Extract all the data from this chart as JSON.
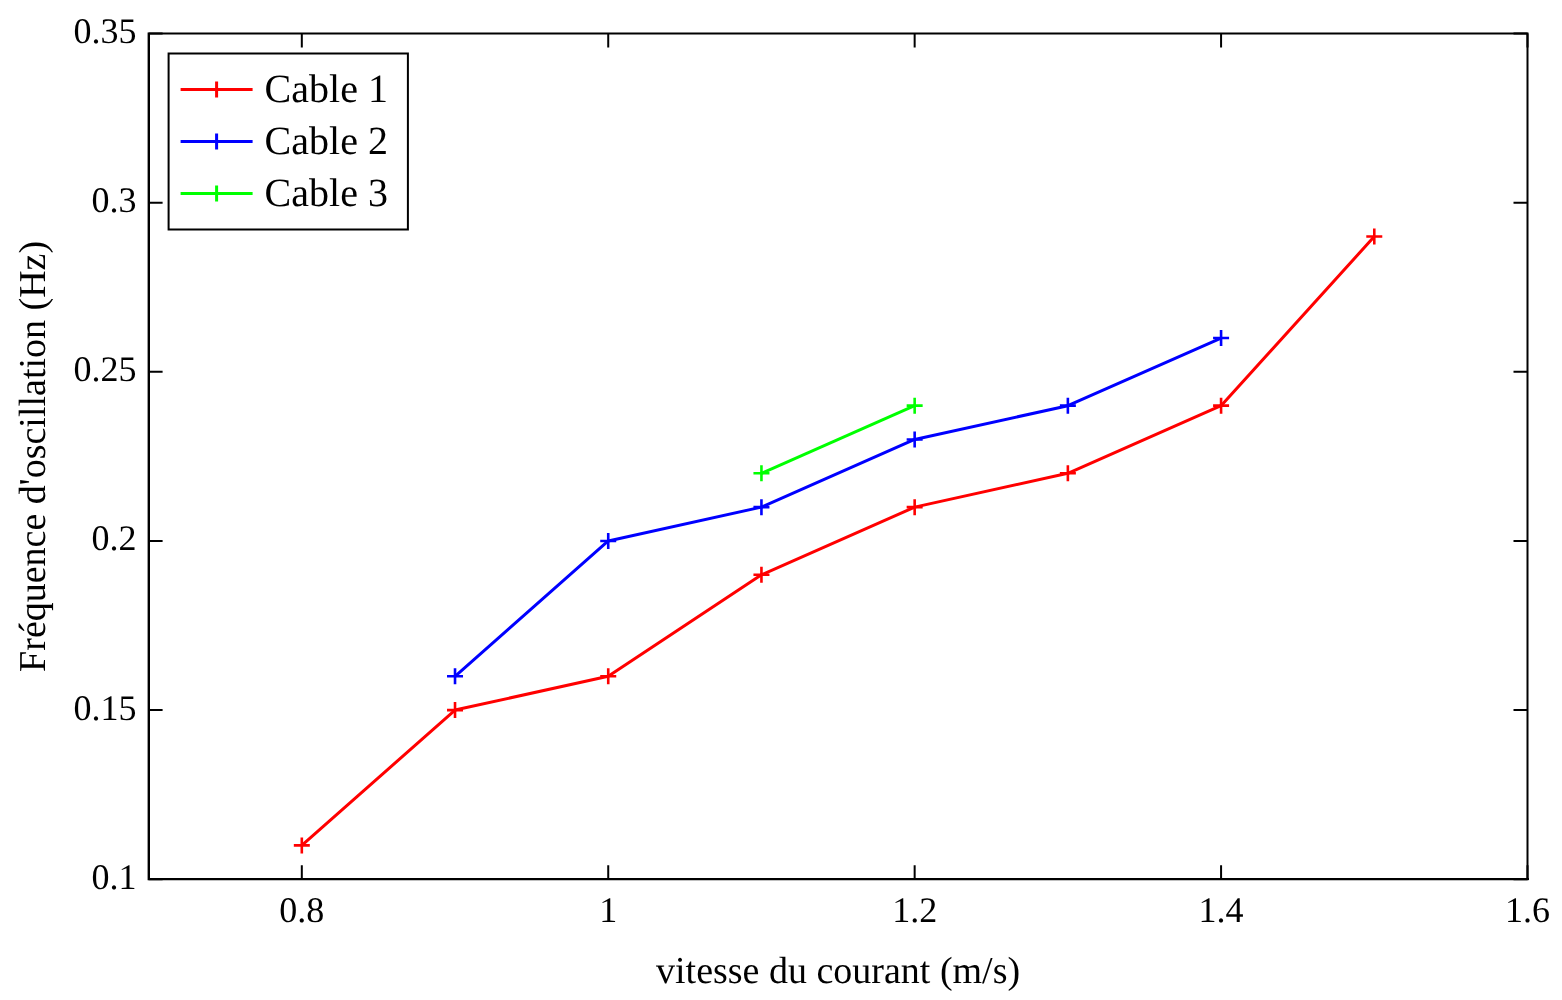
{
  "chart_data": {
    "type": "line",
    "xlabel": "vitesse du courant (m/s)",
    "ylabel": "Fréquence d'oscillation (Hz)",
    "xlim": [
      0.7,
      1.6
    ],
    "xticks": [
      0.8,
      1,
      1.2,
      1.4,
      1.6
    ],
    "ylim": [
      0.1,
      0.35
    ],
    "yticks": [
      0.1,
      0.15,
      0.2,
      0.25,
      0.3,
      0.35
    ],
    "grid": false,
    "legend": "top left",
    "marker": "cross",
    "line_style": "solid",
    "series": [
      {
        "name": "Cable 1",
        "color": "#ff0000",
        "x": [
          0.8,
          0.9,
          1.0,
          1.1,
          1.2,
          1.3,
          1.4,
          1.5
        ],
        "values": [
          0.11,
          0.15,
          0.16,
          0.19,
          0.21,
          0.22,
          0.24,
          0.29
        ]
      },
      {
        "name": "Cable 2",
        "color": "#0000ff",
        "x": [
          0.9,
          1.0,
          1.1,
          1.2,
          1.3,
          1.4
        ],
        "values": [
          0.16,
          0.2,
          0.21,
          0.23,
          0.24,
          0.26
        ]
      },
      {
        "name": "Cable 3",
        "color": "#00ff00",
        "x": [
          1.1,
          1.2
        ],
        "values": [
          0.22,
          0.24
        ]
      }
    ]
  }
}
